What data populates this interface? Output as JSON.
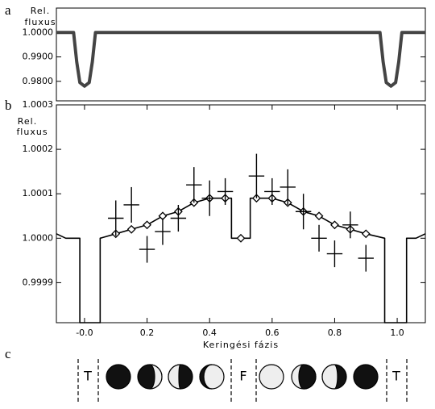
{
  "chart_data": [
    {
      "type": "line",
      "panel_label": "a",
      "ylabel": [
        "Rel.",
        "fluxus"
      ],
      "xlim": [
        -0.09,
        1.09
      ],
      "ylim": [
        0.972,
        1.01
      ],
      "yticks": [
        {
          "value": 1,
          "label": "1.0000"
        },
        {
          "value": 0.99,
          "label": "0.9900"
        },
        {
          "value": 0.98,
          "label": "0.9800"
        }
      ],
      "series": [
        {
          "color": "#444444",
          "x": [
            -0.09,
            -0.035,
            -0.025,
            -0.015,
            0,
            0.015,
            0.025,
            0.035,
            0.945,
            0.955,
            0.965,
            0.98,
            0.995,
            1.005,
            1.015,
            1.09
          ],
          "values": [
            1,
            1,
            0.988,
            0.9795,
            0.978,
            0.9795,
            0.988,
            1,
            1,
            0.988,
            0.9795,
            0.978,
            0.9795,
            0.988,
            1,
            1
          ]
        }
      ]
    },
    {
      "type": "line",
      "panel_label": "b",
      "ylabel": [
        "Rel.",
        "fluxus"
      ],
      "xlabel": "Keringési fázis",
      "xlim": [
        -0.09,
        1.09
      ],
      "ylim": [
        0.99981,
        1.0003
      ],
      "xticks": [
        {
          "value": 0,
          "label": "-0.0"
        },
        0.2,
        0.4,
        0.6,
        0.8,
        {
          "value": 1,
          "label": "1.0"
        }
      ],
      "yticks": [
        0.9999,
        {
          "value": 1,
          "label": "1.0000"
        },
        1.0001,
        1.0002,
        1.0003
      ],
      "series": [
        {
          "color": "#000000",
          "x": [
            -0.09,
            -0.06,
            -0.015,
            -0.015,
            0.05,
            0.05,
            0.1,
            0.15,
            0.2,
            0.25,
            0.3,
            0.35,
            0.4,
            0.45,
            0.47,
            0.47,
            0.53,
            0.53,
            0.6,
            0.65,
            0.7,
            0.75,
            0.8,
            0.85,
            0.9,
            0.96,
            0.96,
            1.03,
            1.03,
            1.06,
            1.09
          ],
          "values": [
            1.00001,
            1.0,
            1.0,
            0.99981,
            0.99981,
            1.0,
            1.00001,
            1.00002,
            1.00003,
            1.00005,
            1.00006,
            1.00008,
            1.00009,
            1.00009,
            1.00009,
            1.0,
            1.0,
            1.00009,
            1.00009,
            1.00008,
            1.00006,
            1.00005,
            1.00003,
            1.00002,
            1.00001,
            1.0,
            0.99981,
            0.99981,
            1.0,
            1.0,
            1.00001
          ]
        },
        {
          "marker": "diamond",
          "color": "#000000",
          "x": [
            0.1,
            0.15,
            0.2,
            0.25,
            0.3,
            0.35,
            0.4,
            0.45,
            0.5,
            0.55,
            0.6,
            0.65,
            0.7,
            0.75,
            0.8,
            0.85,
            0.9
          ],
          "values": [
            1.00001,
            1.00002,
            1.00003,
            1.00005,
            1.00006,
            1.00008,
            1.00009,
            1.00009,
            1.0,
            1.00009,
            1.00009,
            1.00008,
            1.00006,
            1.00005,
            1.00003,
            1.00002,
            1.00001
          ]
        },
        {
          "marker": "errorbar",
          "color": "#000000",
          "xerr": 0.025,
          "x": [
            0.1,
            0.15,
            0.2,
            0.25,
            0.3,
            0.35,
            0.4,
            0.45,
            0.55,
            0.6,
            0.65,
            0.7,
            0.75,
            0.8,
            0.85,
            0.9
          ],
          "values": [
            1.000045,
            1.000075,
            0.999975,
            1.000015,
            1.000045,
            1.00012,
            1.00009,
            1.000105,
            1.00014,
            1.000105,
            1.000115,
            1.00006,
            1.0,
            0.999965,
            1.00003,
            0.999955
          ],
          "yerr": [
            4e-05,
            4e-05,
            3e-05,
            3e-05,
            3e-05,
            4e-05,
            4e-05,
            3e-05,
            5e-05,
            3e-05,
            4e-05,
            4e-05,
            3e-05,
            3e-05,
            3e-05,
            3e-05
          ]
        }
      ]
    }
  ],
  "phase_diagram": {
    "panel_label": "c",
    "markers": [
      "T",
      "F",
      "T"
    ]
  }
}
